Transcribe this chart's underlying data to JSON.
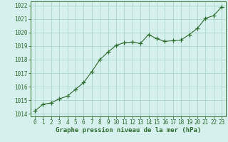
{
  "x": [
    0,
    1,
    2,
    3,
    4,
    5,
    6,
    7,
    8,
    9,
    10,
    11,
    12,
    13,
    14,
    15,
    16,
    17,
    18,
    19,
    20,
    21,
    22,
    23
  ],
  "y": [
    1014.2,
    1014.7,
    1014.8,
    1015.1,
    1015.3,
    1015.8,
    1016.3,
    1017.1,
    1018.0,
    1018.55,
    1019.05,
    1019.25,
    1019.3,
    1019.2,
    1019.85,
    1019.55,
    1019.35,
    1019.4,
    1019.45,
    1019.85,
    1020.3,
    1021.05,
    1021.25,
    1021.9
  ],
  "line_color": "#2d6a2d",
  "marker": "+",
  "marker_size": 4,
  "line_width": 0.8,
  "bg_color": "#d6f0ee",
  "grid_color": "#aad4cc",
  "ylabel_values": [
    1014,
    1015,
    1016,
    1017,
    1018,
    1019,
    1020,
    1021,
    1022
  ],
  "xlabel_values": [
    0,
    1,
    2,
    3,
    4,
    5,
    6,
    7,
    8,
    9,
    10,
    11,
    12,
    13,
    14,
    15,
    16,
    17,
    18,
    19,
    20,
    21,
    22,
    23
  ],
  "xlim": [
    -0.5,
    23.5
  ],
  "ylim": [
    1013.8,
    1022.3
  ],
  "xlabel": "Graphe pression niveau de la mer (hPa)",
  "xlabel_color": "#2d6a2d",
  "tick_color": "#2d6a2d",
  "axis_color": "#2d6a2d",
  "xlabel_fontsize": 6.5,
  "tick_fontsize": 5.5
}
